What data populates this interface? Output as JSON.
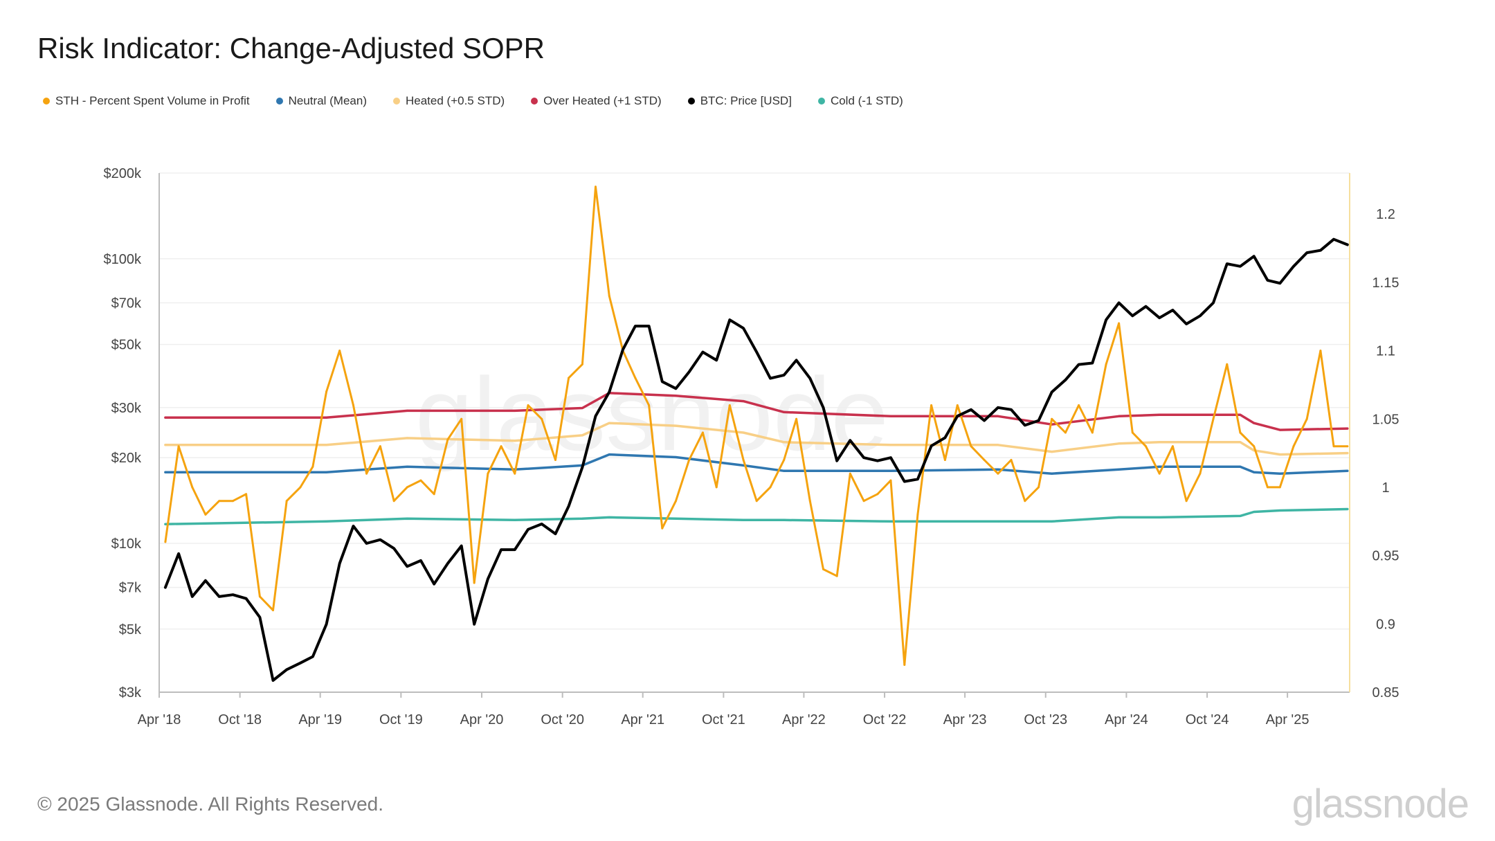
{
  "title": "Risk Indicator: Change-Adjusted SOPR",
  "footer": "© 2025 Glassnode. All Rights Reserved.",
  "brand": "glassnode",
  "watermark": "glassnode",
  "legend": [
    {
      "label": "STH - Percent Spent Volume in Profit",
      "color": "#f5a30f"
    },
    {
      "label": "Neutral (Mean)",
      "color": "#2f77b0"
    },
    {
      "label": "Heated (+0.5 STD)",
      "color": "#f8cf86"
    },
    {
      "label": "Over Heated (+1 STD)",
      "color": "#c8314d"
    },
    {
      "label": "BTC: Price [USD]",
      "color": "#000000"
    },
    {
      "label": "Cold (-1 STD)",
      "color": "#3fb5a4"
    }
  ],
  "chart_data": {
    "type": "line",
    "x_ticks": [
      "Apr '18",
      "Oct '18",
      "Apr '19",
      "Oct '19",
      "Apr '20",
      "Oct '20",
      "Apr '21",
      "Oct '21",
      "Apr '22",
      "Oct '22",
      "Apr '23",
      "Oct '23",
      "Apr '24",
      "Oct '24",
      "Apr '25"
    ],
    "y_left": {
      "scale": "log",
      "range": [
        3000,
        200000
      ],
      "ticks": [
        "$3k",
        "$5k",
        "$7k",
        "$10k",
        "$20k",
        "$30k",
        "$50k",
        "$70k",
        "$100k",
        "$200k"
      ],
      "tick_values": [
        3000,
        5000,
        7000,
        10000,
        20000,
        30000,
        50000,
        70000,
        100000,
        200000
      ]
    },
    "y_right": {
      "scale": "linear",
      "range": [
        0.85,
        1.23
      ],
      "ticks": [
        "0.85",
        "0.9",
        "0.95",
        "1",
        "1.05",
        "1.1",
        "1.15",
        "1.2"
      ],
      "tick_values": [
        0.85,
        0.9,
        0.95,
        1.0,
        1.05,
        1.1,
        1.15,
        1.2
      ]
    },
    "series": [
      {
        "name": "BTC: Price [USD]",
        "color": "#000000",
        "axis": "left",
        "x": [
          "2018-04",
          "2018-05",
          "2018-06",
          "2018-07",
          "2018-08",
          "2018-09",
          "2018-10",
          "2018-11",
          "2018-12",
          "2019-01",
          "2019-02",
          "2019-03",
          "2019-04",
          "2019-05",
          "2019-06",
          "2019-07",
          "2019-08",
          "2019-09",
          "2019-10",
          "2019-11",
          "2019-12",
          "2020-01",
          "2020-02",
          "2020-03",
          "2020-04",
          "2020-05",
          "2020-06",
          "2020-07",
          "2020-08",
          "2020-09",
          "2020-10",
          "2020-11",
          "2020-12",
          "2021-01",
          "2021-02",
          "2021-03",
          "2021-04",
          "2021-05",
          "2021-06",
          "2021-07",
          "2021-08",
          "2021-09",
          "2021-10",
          "2021-11",
          "2021-12",
          "2022-01",
          "2022-02",
          "2022-03",
          "2022-04",
          "2022-05",
          "2022-06",
          "2022-07",
          "2022-08",
          "2022-09",
          "2022-10",
          "2022-11",
          "2022-12",
          "2023-01",
          "2023-02",
          "2023-03",
          "2023-04",
          "2023-05",
          "2023-06",
          "2023-07",
          "2023-08",
          "2023-09",
          "2023-10",
          "2023-11",
          "2023-12",
          "2024-01",
          "2024-02",
          "2024-03",
          "2024-04",
          "2024-05",
          "2024-06",
          "2024-07",
          "2024-08",
          "2024-09",
          "2024-10",
          "2024-11",
          "2024-12",
          "2025-01",
          "2025-02",
          "2025-03",
          "2025-04",
          "2025-05",
          "2025-06",
          "2025-07",
          "2025-08"
        ],
        "y": [
          7000,
          9200,
          6500,
          7400,
          6500,
          6600,
          6400,
          5500,
          3300,
          3600,
          3800,
          4000,
          5200,
          8500,
          11500,
          10000,
          10300,
          9600,
          8300,
          8700,
          7200,
          8500,
          9800,
          5200,
          7500,
          9500,
          9500,
          11200,
          11700,
          10800,
          13500,
          18500,
          28000,
          34000,
          48000,
          58000,
          58000,
          37000,
          35000,
          40000,
          47000,
          44000,
          61000,
          57000,
          47000,
          38000,
          39000,
          44000,
          38000,
          30000,
          19500,
          23000,
          20000,
          19500,
          20000,
          16500,
          16800,
          22000,
          23500,
          28000,
          29500,
          27000,
          30000,
          29500,
          26000,
          27000,
          34000,
          37500,
          42500,
          43000,
          61000,
          70000,
          63000,
          68000,
          62000,
          66000,
          59000,
          63000,
          70000,
          96000,
          94000,
          102000,
          84000,
          82000,
          94000,
          105000,
          107000,
          117000,
          112000
        ]
      },
      {
        "name": "STH - Percent Spent Volume in Profit",
        "color": "#f5a30f",
        "axis": "right",
        "x": [
          "2018-04",
          "2018-05",
          "2018-06",
          "2018-07",
          "2018-08",
          "2018-09",
          "2018-10",
          "2018-11",
          "2018-12",
          "2019-01",
          "2019-02",
          "2019-03",
          "2019-04",
          "2019-05",
          "2019-06",
          "2019-07",
          "2019-08",
          "2019-09",
          "2019-10",
          "2019-11",
          "2019-12",
          "2020-01",
          "2020-02",
          "2020-03",
          "2020-04",
          "2020-05",
          "2020-06",
          "2020-07",
          "2020-08",
          "2020-09",
          "2020-10",
          "2020-11",
          "2020-12",
          "2021-01",
          "2021-02",
          "2021-03",
          "2021-04",
          "2021-05",
          "2021-06",
          "2021-07",
          "2021-08",
          "2021-09",
          "2021-10",
          "2021-11",
          "2021-12",
          "2022-01",
          "2022-02",
          "2022-03",
          "2022-04",
          "2022-05",
          "2022-06",
          "2022-07",
          "2022-08",
          "2022-09",
          "2022-10",
          "2022-11",
          "2022-12",
          "2023-01",
          "2023-02",
          "2023-03",
          "2023-04",
          "2023-05",
          "2023-06",
          "2023-07",
          "2023-08",
          "2023-09",
          "2023-10",
          "2023-11",
          "2023-12",
          "2024-01",
          "2024-02",
          "2024-03",
          "2024-04",
          "2024-05",
          "2024-06",
          "2024-07",
          "2024-08",
          "2024-09",
          "2024-10",
          "2024-11",
          "2024-12",
          "2025-01",
          "2025-02",
          "2025-03",
          "2025-04",
          "2025-05",
          "2025-06",
          "2025-07",
          "2025-08"
        ],
        "y": [
          0.96,
          1.03,
          1.0,
          0.98,
          0.99,
          0.99,
          0.995,
          0.92,
          0.91,
          0.99,
          1.0,
          1.015,
          1.07,
          1.1,
          1.06,
          1.01,
          1.03,
          0.99,
          1.0,
          1.005,
          0.995,
          1.035,
          1.05,
          0.93,
          1.01,
          1.03,
          1.01,
          1.06,
          1.05,
          1.02,
          1.08,
          1.09,
          1.22,
          1.14,
          1.1,
          1.08,
          1.06,
          0.97,
          0.99,
          1.02,
          1.04,
          1.0,
          1.06,
          1.02,
          0.99,
          1.0,
          1.02,
          1.05,
          0.99,
          0.94,
          0.935,
          1.01,
          0.99,
          0.995,
          1.005,
          0.87,
          0.98,
          1.06,
          1.02,
          1.06,
          1.03,
          1.02,
          1.01,
          1.02,
          0.99,
          1.0,
          1.05,
          1.04,
          1.06,
          1.04,
          1.09,
          1.12,
          1.04,
          1.03,
          1.01,
          1.03,
          0.99,
          1.01,
          1.05,
          1.09,
          1.04,
          1.03,
          1.0,
          1.0,
          1.03,
          1.05,
          1.1,
          1.03,
          1.03
        ]
      },
      {
        "name": "Over Heated (+1 STD)",
        "color": "#c8314d",
        "axis": "right",
        "x": [
          "2018-04",
          "2019-04",
          "2019-10",
          "2020-06",
          "2020-11",
          "2021-01",
          "2021-06",
          "2021-11",
          "2022-02",
          "2022-10",
          "2023-06",
          "2023-10",
          "2024-03",
          "2024-06",
          "2024-12",
          "2025-01",
          "2025-03",
          "2025-08"
        ],
        "y": [
          1.051,
          1.051,
          1.056,
          1.056,
          1.058,
          1.069,
          1.067,
          1.063,
          1.055,
          1.052,
          1.052,
          1.046,
          1.052,
          1.053,
          1.053,
          1.047,
          1.042,
          1.043
        ]
      },
      {
        "name": "Heated (+0.5 STD)",
        "color": "#f8cf86",
        "axis": "right",
        "x": [
          "2018-04",
          "2019-04",
          "2019-10",
          "2020-06",
          "2020-11",
          "2021-01",
          "2021-06",
          "2021-11",
          "2022-02",
          "2022-10",
          "2023-06",
          "2023-10",
          "2024-03",
          "2024-06",
          "2024-12",
          "2025-01",
          "2025-03",
          "2025-08"
        ],
        "y": [
          1.031,
          1.031,
          1.036,
          1.034,
          1.038,
          1.047,
          1.045,
          1.04,
          1.033,
          1.031,
          1.031,
          1.026,
          1.032,
          1.033,
          1.033,
          1.027,
          1.024,
          1.025
        ]
      },
      {
        "name": "Neutral (Mean)",
        "color": "#2f77b0",
        "axis": "right",
        "x": [
          "2018-04",
          "2019-04",
          "2019-10",
          "2020-06",
          "2020-11",
          "2021-01",
          "2021-06",
          "2021-11",
          "2022-02",
          "2022-10",
          "2023-06",
          "2023-10",
          "2024-03",
          "2024-06",
          "2024-12",
          "2025-01",
          "2025-03",
          "2025-08"
        ],
        "y": [
          1.011,
          1.011,
          1.015,
          1.013,
          1.016,
          1.024,
          1.022,
          1.016,
          1.012,
          1.012,
          1.013,
          1.01,
          1.013,
          1.015,
          1.015,
          1.011,
          1.01,
          1.012
        ]
      },
      {
        "name": "Cold (-1 STD)",
        "color": "#3fb5a4",
        "axis": "right",
        "x": [
          "2018-04",
          "2019-04",
          "2019-10",
          "2020-06",
          "2020-11",
          "2021-01",
          "2021-06",
          "2021-11",
          "2022-02",
          "2022-10",
          "2023-06",
          "2023-10",
          "2024-03",
          "2024-06",
          "2024-12",
          "2025-01",
          "2025-03",
          "2025-08"
        ],
        "y": [
          0.973,
          0.975,
          0.977,
          0.976,
          0.977,
          0.978,
          0.977,
          0.976,
          0.976,
          0.975,
          0.975,
          0.975,
          0.978,
          0.978,
          0.979,
          0.982,
          0.983,
          0.984
        ]
      }
    ]
  }
}
